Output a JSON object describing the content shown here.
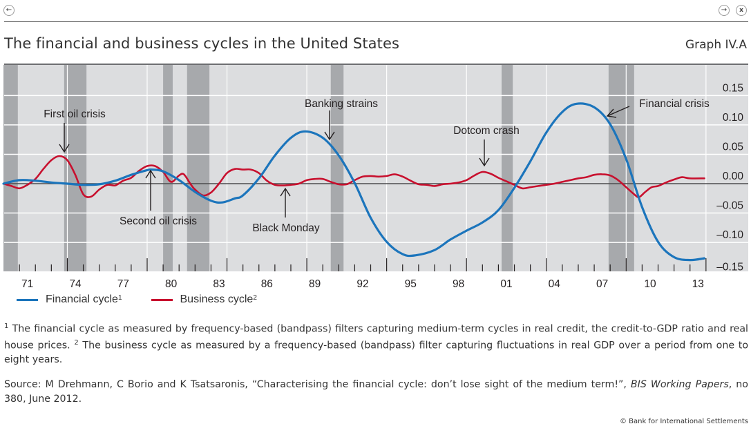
{
  "window": {
    "back_icon": "←",
    "forward_icon": "→",
    "close_icon": "x"
  },
  "header": {
    "title": "The financial and business cycles in the United States",
    "graph_id": "Graph IV.A"
  },
  "legend": [
    {
      "label": "Financial cycle",
      "note": "1",
      "color": "#1c75bc"
    },
    {
      "label": "Business cycle",
      "note": "2",
      "color": "#c8102e"
    }
  ],
  "notes": {
    "note1_marker": "1",
    "note1_text": " The financial cycle as measured by frequency-based (bandpass) filters capturing medium-term cycles in real credit, the credit-to-GDP ratio and real house prices. ",
    "note2_marker": "2",
    "note2_text": " The business cycle as measured by a frequency-based (bandpass) filter capturing fluctuations in real GDP over a period from one to eight years."
  },
  "source": {
    "prefix": "Source: M Drehmann, C Borio and K Tsatsaronis, “Characterising the financial cycle: don’t lose sight of the medium term!”, ",
    "journal": "BIS Working Papers",
    "suffix": ", no 380, June 2012."
  },
  "copyright": "© Bank for International Settlements",
  "chart_data": {
    "type": "line",
    "title": "The financial and business cycles in the United States",
    "xlabel": "",
    "ylabel": "",
    "xlim": [
      1970,
      2014
    ],
    "ylim": [
      -0.15,
      0.175
    ],
    "grid": true,
    "y_axis_side": "right",
    "legend_position": "bottom-left",
    "x_tick_labels": [
      "71",
      "74",
      "77",
      "80",
      "83",
      "86",
      "89",
      "92",
      "95",
      "98",
      "01",
      "04",
      "07",
      "10",
      "13"
    ],
    "x_tick_label_years": [
      1971,
      1974,
      1977,
      1980,
      1983,
      1986,
      1989,
      1992,
      1995,
      1998,
      2001,
      2004,
      2007,
      2010,
      2013
    ],
    "major_tick_years": [
      1974,
      1979,
      1984,
      1989,
      1994,
      1999,
      2004,
      2009,
      2014
    ],
    "y_ticks": [
      0.15,
      0.1,
      0.05,
      0.0,
      -0.05,
      -0.1,
      -0.15
    ],
    "y_tick_labels": [
      "0.15",
      "0.10",
      "0.05",
      "0.00",
      "–0.05",
      "–0.10",
      "–0.15"
    ],
    "recessions": [
      [
        1970.0,
        1970.9
      ],
      [
        1973.8,
        1975.2
      ],
      [
        1980.0,
        1980.6
      ],
      [
        1981.5,
        1982.9
      ],
      [
        1990.5,
        1991.3
      ],
      [
        2001.2,
        2001.9
      ],
      [
        2007.9,
        2009.5
      ]
    ],
    "series": [
      {
        "name": "Financial cycle",
        "color": "#1c75bc",
        "x": [
          1970.0,
          1971.0,
          1972.0,
          1973.0,
          1974.0,
          1975.0,
          1976.0,
          1977.0,
          1978.0,
          1979.0,
          1979.3,
          1980.0,
          1981.0,
          1982.0,
          1983.0,
          1983.7,
          1984.5,
          1985.0,
          1986.0,
          1987.0,
          1988.0,
          1988.9,
          1990.0,
          1991.0,
          1992.0,
          1993.0,
          1994.0,
          1995.0,
          1995.8,
          1997.0,
          1998.0,
          1999.0,
          2000.0,
          2001.0,
          2002.0,
          2003.0,
          2004.0,
          2005.0,
          2005.9,
          2007.0,
          2008.0,
          2009.0,
          2010.0,
          2011.0,
          2012.0,
          2013.0,
          2013.9
        ],
        "values": [
          0.0,
          0.006,
          0.005,
          0.002,
          0.0,
          -0.002,
          -0.001,
          0.005,
          0.015,
          0.023,
          0.024,
          0.021,
          0.006,
          -0.014,
          -0.029,
          -0.032,
          -0.025,
          -0.02,
          0.009,
          0.048,
          0.078,
          0.089,
          0.078,
          0.048,
          0.001,
          -0.058,
          -0.099,
          -0.12,
          -0.122,
          -0.113,
          -0.095,
          -0.08,
          -0.066,
          -0.045,
          -0.007,
          0.038,
          0.087,
          0.122,
          0.136,
          0.13,
          0.101,
          0.042,
          -0.04,
          -0.099,
          -0.125,
          -0.13,
          -0.127
        ]
      },
      {
        "name": "Business cycle",
        "color": "#c8102e",
        "x": [
          1970.0,
          1970.5,
          1971.0,
          1971.5,
          1972.0,
          1972.5,
          1973.0,
          1973.5,
          1974.0,
          1974.5,
          1975.0,
          1975.5,
          1976.0,
          1976.5,
          1977.0,
          1977.5,
          1978.0,
          1978.5,
          1979.0,
          1979.5,
          1980.0,
          1980.5,
          1981.0,
          1981.3,
          1981.7,
          1982.0,
          1982.5,
          1983.0,
          1983.5,
          1984.0,
          1984.5,
          1985.0,
          1985.5,
          1986.0,
          1986.5,
          1987.0,
          1987.5,
          1988.0,
          1988.5,
          1989.0,
          1989.5,
          1990.0,
          1990.5,
          1991.0,
          1991.5,
          1992.0,
          1992.5,
          1993.0,
          1993.5,
          1994.0,
          1994.5,
          1995.0,
          1995.5,
          1996.0,
          1996.5,
          1997.0,
          1997.5,
          1998.0,
          1998.5,
          1999.0,
          1999.5,
          2000.0,
          2000.5,
          2001.0,
          2001.5,
          2002.0,
          2002.5,
          2003.0,
          2003.5,
          2004.0,
          2004.5,
          2005.0,
          2005.5,
          2006.0,
          2006.5,
          2007.0,
          2007.5,
          2008.0,
          2008.5,
          2009.0,
          2009.5,
          2009.8,
          2010.2,
          2010.6,
          2011.0,
          2011.5,
          2012.0,
          2012.5,
          2013.0,
          2013.9
        ],
        "values": [
          0.0,
          -0.004,
          -0.008,
          -0.002,
          0.008,
          0.025,
          0.04,
          0.047,
          0.04,
          0.015,
          -0.018,
          -0.022,
          -0.01,
          -0.002,
          -0.003,
          0.005,
          0.01,
          0.022,
          0.03,
          0.03,
          0.02,
          0.003,
          0.014,
          0.016,
          0.0,
          -0.01,
          -0.02,
          -0.015,
          0.0,
          0.018,
          0.025,
          0.024,
          0.024,
          0.018,
          0.005,
          -0.002,
          -0.003,
          -0.002,
          0.0,
          0.006,
          0.008,
          0.008,
          0.003,
          -0.001,
          -0.001,
          0.006,
          0.012,
          0.013,
          0.012,
          0.013,
          0.016,
          0.012,
          0.005,
          -0.001,
          -0.002,
          -0.004,
          -0.001,
          0.0,
          0.002,
          0.006,
          0.014,
          0.02,
          0.017,
          0.01,
          0.004,
          -0.002,
          -0.008,
          -0.006,
          -0.004,
          -0.002,
          0.0,
          0.003,
          0.006,
          0.009,
          0.011,
          0.015,
          0.016,
          0.014,
          0.006,
          -0.006,
          -0.018,
          -0.023,
          -0.014,
          -0.006,
          -0.004,
          0.002,
          0.007,
          0.011,
          0.009,
          0.009
        ]
      }
    ],
    "annotations": [
      {
        "label": "First oil crisis",
        "year": 1973.6,
        "value": 0.048,
        "direction": "down"
      },
      {
        "label": "Second oil crisis",
        "year": 1979.1,
        "value": 0.025,
        "direction": "up"
      },
      {
        "label": "Banking strains",
        "year": 1990.5,
        "value": 0.078,
        "direction": "down"
      },
      {
        "label": "Black Monday",
        "year": 1987.7,
        "value": -0.003,
        "direction": "up"
      },
      {
        "label": "Dotcom crash",
        "year": 2000.1,
        "value": 0.03,
        "direction": "down"
      },
      {
        "label": "Financial crisis",
        "year": 2007.8,
        "value": 0.115,
        "direction": "left"
      }
    ]
  }
}
